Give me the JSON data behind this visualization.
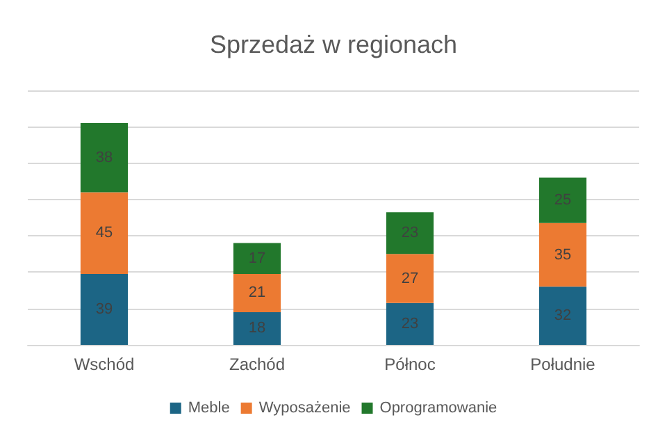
{
  "chart_data": {
    "type": "bar",
    "title": "Sprzedaż w regionach",
    "categories": [
      "Wschód",
      "Zachód",
      "Północ",
      "Południe"
    ],
    "stacked": true,
    "series": [
      {
        "name": "Meble",
        "color": "#1c6585",
        "values": [
          39,
          18,
          23,
          32
        ]
      },
      {
        "name": "Wyposażenie",
        "color": "#ec7a32",
        "values": [
          45,
          21,
          27,
          35
        ]
      },
      {
        "name": "Oprogramowanie",
        "color": "#22782c",
        "values": [
          38,
          17,
          23,
          25
        ]
      }
    ],
    "ylim": [
      0,
      140
    ],
    "yticks": [
      {
        "value": 0,
        "label": null
      },
      {
        "value": 20,
        "label": null
      },
      {
        "value": 40,
        "label": null
      },
      {
        "value": 60,
        "label": null
      },
      {
        "value": 80,
        "label": null
      },
      {
        "value": 100,
        "label": null
      },
      {
        "value": 120,
        "label": null
      },
      {
        "value": 140,
        "label": null
      }
    ],
    "grid": true,
    "legend": "bottom",
    "data_labels": true
  }
}
